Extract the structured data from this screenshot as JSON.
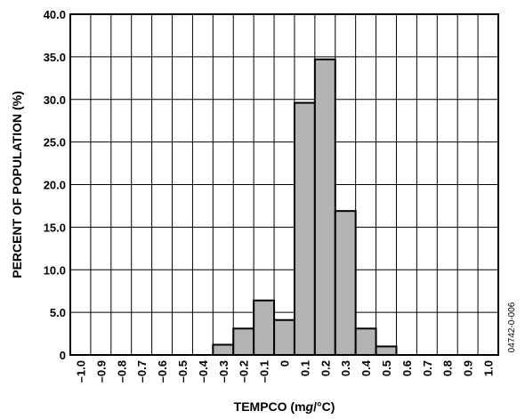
{
  "chart_data": {
    "type": "bar",
    "title": "",
    "xlabel": "TEMPCO (mg/°C)",
    "ylabel": "PERCENT OF POPULATION (%)",
    "side_note": "04742-0-006",
    "categories": [
      "–1.0",
      "–0.9",
      "–0.8",
      "–0.7",
      "–0.6",
      "–0.5",
      "–0.4",
      "–0.3",
      "–0.2",
      "–0.1",
      "0",
      "0.1",
      "0.2",
      "0.3",
      "0.4",
      "0.5",
      "0.6",
      "0.7",
      "0.8",
      "0.9",
      "1.0"
    ],
    "ylim": [
      0,
      40
    ],
    "yticks": [
      "0",
      "5.0",
      "10.0",
      "15.0",
      "20.0",
      "25.0",
      "30.0",
      "35.0",
      "40.0"
    ],
    "bars": [
      {
        "x_start": -0.35,
        "x_end": -0.25,
        "value": 1.2
      },
      {
        "x_start": -0.25,
        "x_end": -0.15,
        "value": 3.1
      },
      {
        "x_start": -0.15,
        "x_end": -0.05,
        "value": 6.4
      },
      {
        "x_start": -0.05,
        "x_end": 0.05,
        "value": 4.1
      },
      {
        "x_start": 0.05,
        "x_end": 0.15,
        "value": 29.6
      },
      {
        "x_start": 0.15,
        "x_end": 0.25,
        "value": 34.7
      },
      {
        "x_start": 0.25,
        "x_end": 0.35,
        "value": 16.9
      },
      {
        "x_start": 0.35,
        "x_end": 0.45,
        "value": 3.1
      },
      {
        "x_start": 0.45,
        "x_end": 0.55,
        "value": 1.0
      }
    ],
    "grid": true,
    "bar_color": "#b3b3b3",
    "legend": "none"
  }
}
